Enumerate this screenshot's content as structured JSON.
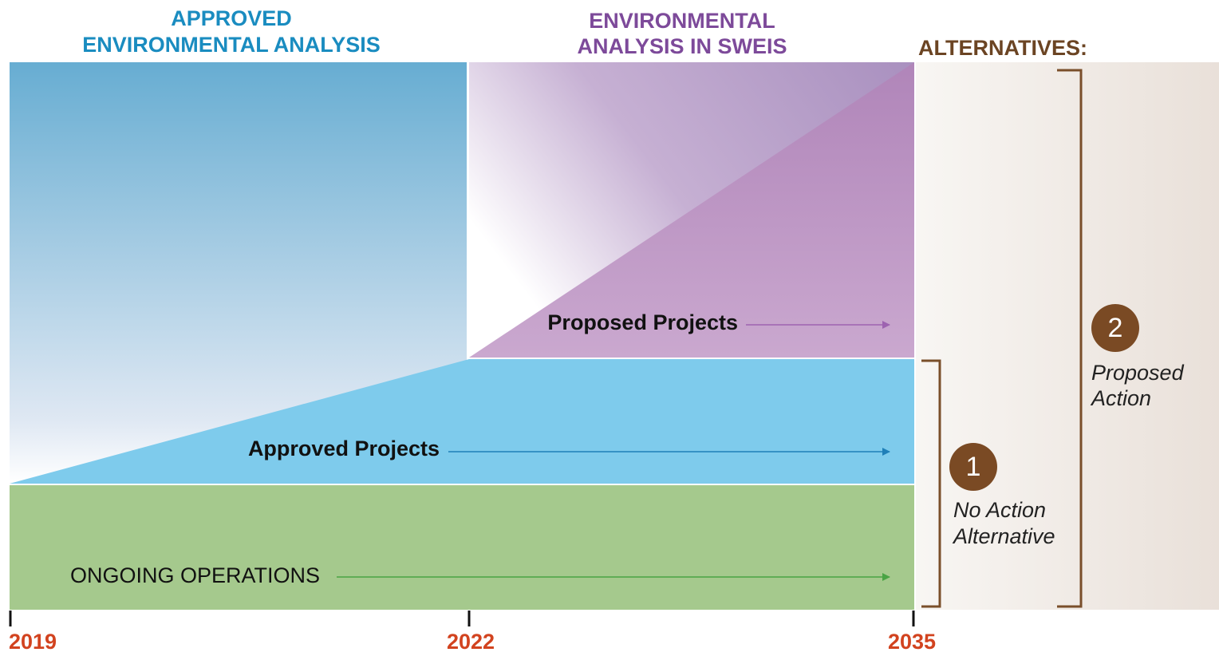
{
  "headers": {
    "approved": [
      "APPROVED",
      "ENVIRONMENTAL ANALYSIS"
    ],
    "sweis": [
      "ENVIRONMENTAL",
      "ANALYSIS IN SWEIS"
    ],
    "alternatives": "ALTERNATIVES:"
  },
  "bands": {
    "proposed": "Proposed Projects",
    "approved": "Approved Projects",
    "ongoing": "ONGOING OPERATIONS"
  },
  "timeline": [
    "2019",
    "2022",
    "2035"
  ],
  "alternatives": [
    {
      "number": "1",
      "label": [
        "No Action",
        "Alternative"
      ]
    },
    {
      "number": "2",
      "label": [
        "Proposed",
        "Action"
      ]
    }
  ]
}
